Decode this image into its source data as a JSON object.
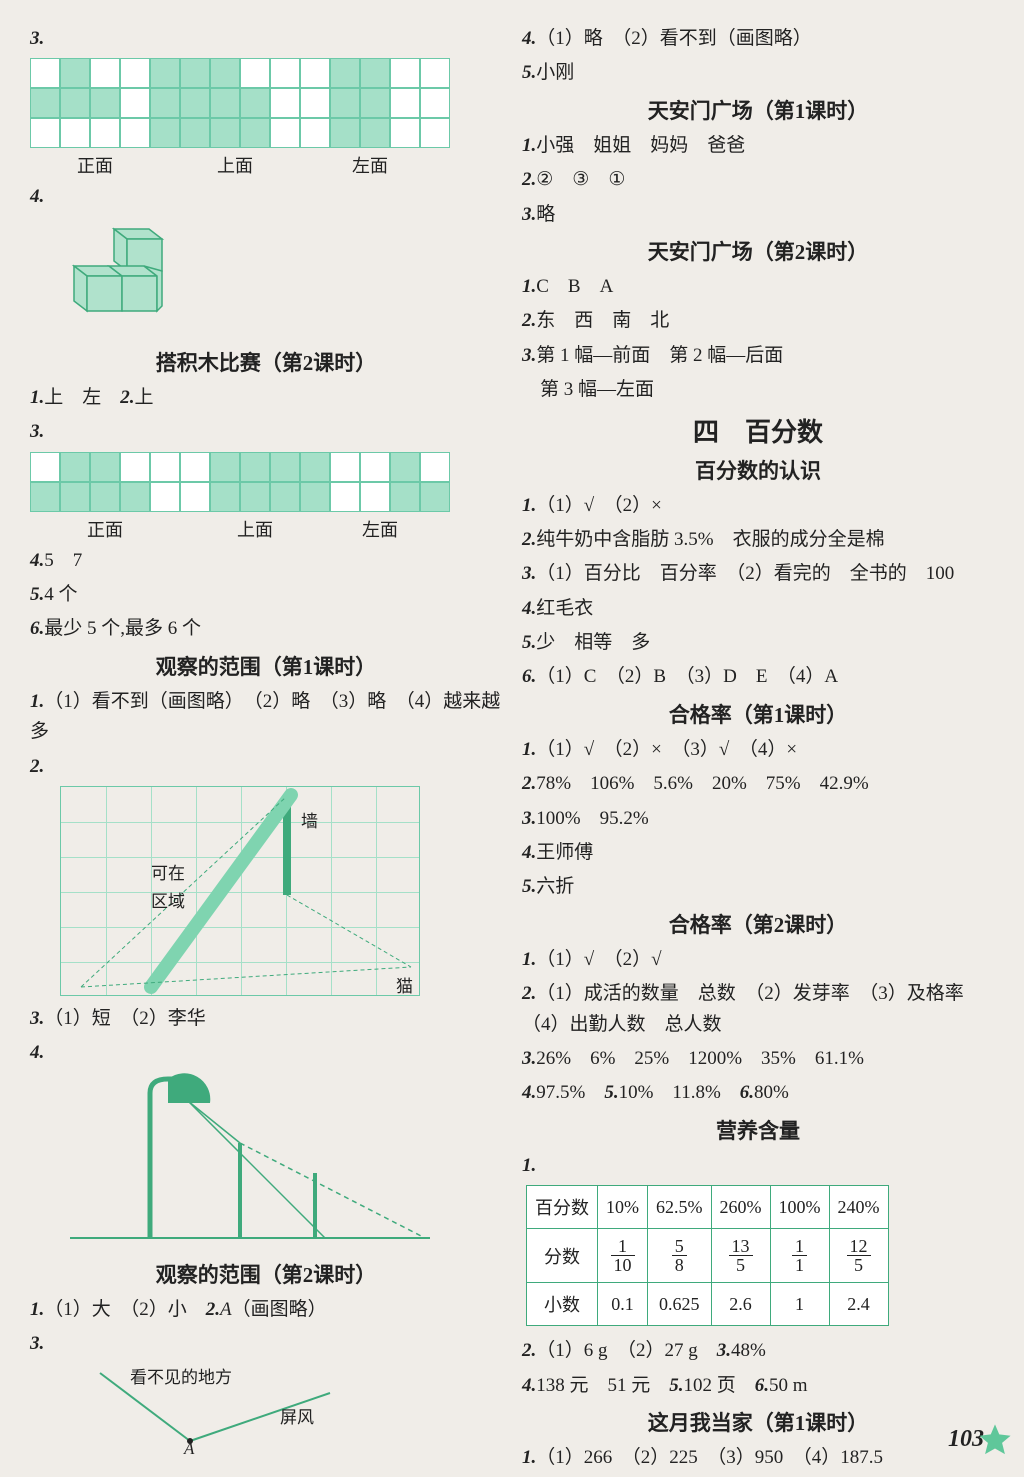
{
  "colors": {
    "cell_border": "#6cc9a8",
    "cell_fill": "#a5e0c8",
    "table_border": "#3faa7c",
    "text": "#222222",
    "bg": "#f0ede8"
  },
  "left": {
    "q3_label": "3.",
    "views1": {
      "rows": 3,
      "cols": 14,
      "fill": [
        [
          0,
          1
        ],
        [
          0,
          4
        ],
        [
          0,
          5
        ],
        [
          0,
          6
        ],
        [
          1,
          0
        ],
        [
          1,
          1
        ],
        [
          1,
          2
        ],
        [
          1,
          4
        ],
        [
          1,
          5
        ],
        [
          1,
          6
        ],
        [
          1,
          7
        ],
        [
          2,
          4
        ],
        [
          2,
          5
        ],
        [
          2,
          6
        ],
        [
          2,
          7
        ],
        [
          0,
          10
        ],
        [
          0,
          11
        ],
        [
          1,
          10
        ],
        [
          1,
          11
        ],
        [
          2,
          10
        ],
        [
          2,
          11
        ]
      ],
      "labels": [
        "正面",
        "上面",
        "左面"
      ]
    },
    "q4_label": "4.",
    "h_sec1": "搭积木比赛（第2课时）",
    "l1": "1.上　左　2.上",
    "q3b_label": "3.",
    "views2": {
      "rows": 2,
      "cols": 14,
      "fill": [
        [
          0,
          1
        ],
        [
          0,
          2
        ],
        [
          1,
          0
        ],
        [
          1,
          1
        ],
        [
          1,
          2
        ],
        [
          1,
          3
        ],
        [
          0,
          6
        ],
        [
          0,
          7
        ],
        [
          0,
          8
        ],
        [
          0,
          9
        ],
        [
          1,
          6
        ],
        [
          1,
          7
        ],
        [
          1,
          8
        ],
        [
          1,
          9
        ],
        [
          0,
          12
        ],
        [
          1,
          12
        ],
        [
          1,
          13
        ]
      ],
      "labels": [
        "正面",
        "上面",
        "左面"
      ]
    },
    "l2": "4.5　7",
    "l3": "5.4 个",
    "l4": "6.最少 5 个,最多 6 个",
    "h_sec2": "观察的范围（第1课时）",
    "l5": "1.（1）看不到（画图略）　（2）略　（3）略　（4）越来越多",
    "q2_label": "2.",
    "wc": {
      "wall": "墙",
      "area1": "可在",
      "area2": "区域",
      "cat": "猫"
    },
    "l6": "3.（1）短　（2）李华",
    "q4b_label": "4.",
    "h_sec3": "观察的范围（第2课时）",
    "l7": "1.（1）大　（2）小　2.A（画图略）",
    "q3c_label": "3.",
    "angle": {
      "top": "看不见的地方",
      "screen": "屏风",
      "a": "A"
    }
  },
  "right": {
    "l1": "4.（1）略　（2）看不到（画图略）",
    "l2": "5.小刚",
    "h1": "天安门广场（第1课时）",
    "l3": "1.小强　姐姐　妈妈　爸爸",
    "l4": "2.②　③　①",
    "l5": "3.略",
    "h2": "天安门广场（第2课时）",
    "l6": "1.C　B　A",
    "l7": "2.东　西　南　北",
    "l8": "3.第 1 幅—前面　第 2 幅—后面",
    "l8b": "第 3 幅—左面",
    "h3": "四　百分数",
    "h4": "百分数的认识",
    "l9": "1.（1）√　（2）×",
    "l10": "2.纯牛奶中含脂肪 3.5%　衣服的成分全是棉",
    "l11": "3.（1）百分比　百分率　（2）看完的　全书的　100",
    "l12": "4.红毛衣",
    "l13": "5.少　相等　多",
    "l14": "6.（1）C　（2）B　（3）D　E　（4）A",
    "h5": "合格率（第1课时）",
    "l15": "1.（1）√　（2）×　（3）√　（4）×",
    "l16": "2.78%　106%　5.6%　20%　75%　42.9%",
    "l17": "3.100%　95.2%",
    "l18": "4.王师傅",
    "l19": "5.六折",
    "h6": "合格率（第2课时）",
    "l20": "1.（1）√　（2）√",
    "l21": "2.（1）成活的数量　总数　（2）发芽率　（3）及格率　（4）出勤人数　总人数",
    "l22": "3.26%　6%　25%　1200%　35%　61.1%",
    "l23": "4.97.5%　5.10%　11.8%　6.80%",
    "h7": "营养含量",
    "q1_label": "1.",
    "table": {
      "header": [
        "百分数",
        "10%",
        "62.5%",
        "260%",
        "100%",
        "240%"
      ],
      "frac_label": "分数",
      "fractions": [
        [
          "1",
          "10"
        ],
        [
          "5",
          "8"
        ],
        [
          "13",
          "5"
        ],
        [
          "1",
          "1"
        ],
        [
          "12",
          "5"
        ]
      ],
      "dec_label": "小数",
      "decimals": [
        "0.1",
        "0.625",
        "2.6",
        "1",
        "2.4"
      ]
    },
    "l24": "2.（1）6 g　（2）27 g　3.48%",
    "l25": "4.138 元　51 元　5.102 页　6.50 m",
    "h8": "这月我当家（第1课时）",
    "l26": "1.（1）266　（2）225　（3）950　（4）187.5"
  },
  "page_number": "103"
}
